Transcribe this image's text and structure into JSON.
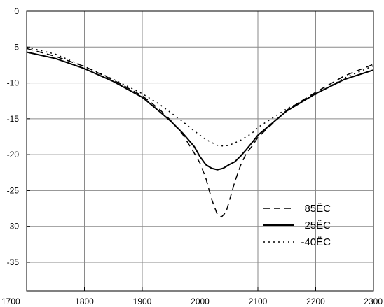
{
  "chart_data": {
    "type": "line",
    "title": "",
    "xlabel": "",
    "ylabel": "",
    "xlim": [
      1700,
      2300
    ],
    "ylim": [
      -39,
      0
    ],
    "xticks": [
      1700,
      1800,
      1900,
      2000,
      2100,
      2200,
      2300
    ],
    "yticks": [
      0,
      -5,
      -10,
      -15,
      -20,
      -25,
      -30,
      -35
    ],
    "grid": true,
    "legend_position": "bottom-right",
    "series": [
      {
        "name": "85ЁC",
        "line_style": "dashed",
        "color": "#000000",
        "x": [
          1700,
          1750,
          1800,
          1850,
          1900,
          1930,
          1950,
          1970,
          1990,
          2000,
          2010,
          2020,
          2030,
          2037,
          2045,
          2050,
          2060,
          2070,
          2080,
          2090,
          2100,
          2150,
          2200,
          2250,
          2300
        ],
        "y": [
          -5.2,
          -6.3,
          -7.7,
          -9.6,
          -11.8,
          -13.7,
          -15.3,
          -17.2,
          -19.8,
          -21.2,
          -23.3,
          -26.2,
          -28.4,
          -28.7,
          -28.0,
          -26.6,
          -23.8,
          -21.5,
          -19.8,
          -18.8,
          -17.6,
          -13.8,
          -11.3,
          -9.0,
          -7.4
        ]
      },
      {
        "name": "25ЁC",
        "line_style": "solid",
        "color": "#000000",
        "x": [
          1700,
          1750,
          1800,
          1850,
          1900,
          1930,
          1950,
          1970,
          1990,
          2000,
          2010,
          2020,
          2030,
          2040,
          2050,
          2060,
          2070,
          2080,
          2090,
          2100,
          2150,
          2200,
          2250,
          2300
        ],
        "y": [
          -5.7,
          -6.6,
          -8.0,
          -9.8,
          -12.0,
          -14.0,
          -15.4,
          -17.0,
          -18.9,
          -20.3,
          -21.4,
          -21.9,
          -22.1,
          -21.9,
          -21.4,
          -21.0,
          -20.2,
          -19.3,
          -18.3,
          -17.3,
          -13.9,
          -11.5,
          -9.5,
          -8.2
        ]
      },
      {
        "name": "-40ЁC",
        "line_style": "dotted",
        "color": "#000000",
        "x": [
          1700,
          1750,
          1800,
          1850,
          1900,
          1930,
          1950,
          1970,
          1990,
          2010,
          2030,
          2040,
          2050,
          2070,
          2090,
          2100,
          2150,
          2200,
          2250,
          2300
        ],
        "y": [
          -5.0,
          -6.0,
          -7.7,
          -9.5,
          -11.5,
          -13.0,
          -14.2,
          -15.4,
          -16.7,
          -17.9,
          -18.7,
          -18.8,
          -18.7,
          -18.0,
          -17.0,
          -16.2,
          -13.6,
          -11.6,
          -9.3,
          -7.6
        ]
      }
    ]
  }
}
